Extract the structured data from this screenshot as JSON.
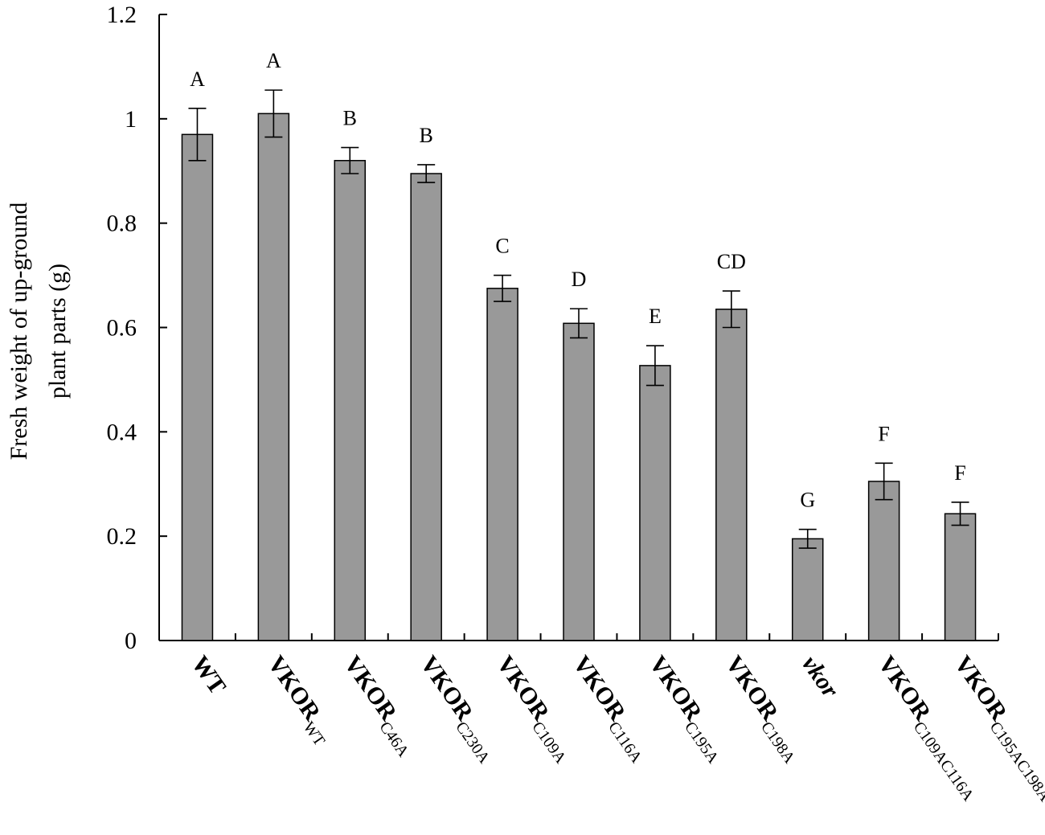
{
  "chart_data": {
    "type": "bar",
    "xlabel": "",
    "ylabel": [
      "Fresh weight of up-ground",
      "plant parts (g)"
    ],
    "ylim": [
      0,
      1.2
    ],
    "yticks": [
      "0",
      "0.2",
      "0.4",
      "0.6",
      "0.8",
      "1",
      "1.2"
    ],
    "grid": false,
    "bar_color": "#999999",
    "categories": [
      {
        "main": "WT",
        "sub": "",
        "italic": false
      },
      {
        "main": "VKOR",
        "sub": "WT",
        "italic": false
      },
      {
        "main": "VKOR",
        "sub": "C46A",
        "italic": false
      },
      {
        "main": "VKOR",
        "sub": "C230A",
        "italic": false
      },
      {
        "main": "VKOR",
        "sub": "C109A",
        "italic": false
      },
      {
        "main": "VKOR",
        "sub": "C116A",
        "italic": false
      },
      {
        "main": "VKOR",
        "sub": "C195A",
        "italic": false
      },
      {
        "main": "VKOR",
        "sub": "C198A",
        "italic": false
      },
      {
        "main": "vkor",
        "sub": "",
        "italic": true
      },
      {
        "main": "VKOR",
        "sub": "C109AC116A",
        "italic": false
      },
      {
        "main": "VKOR",
        "sub": "C195AC198A",
        "italic": false
      }
    ],
    "values": [
      0.97,
      1.01,
      0.92,
      0.895,
      0.675,
      0.608,
      0.527,
      0.635,
      0.195,
      0.305,
      0.243
    ],
    "errors": [
      0.05,
      0.045,
      0.025,
      0.017,
      0.025,
      0.028,
      0.038,
      0.035,
      0.018,
      0.035,
      0.022
    ],
    "significance": [
      "A",
      "A",
      "B",
      "B",
      "C",
      "D",
      "E",
      "CD",
      "G",
      "F",
      "F"
    ]
  }
}
